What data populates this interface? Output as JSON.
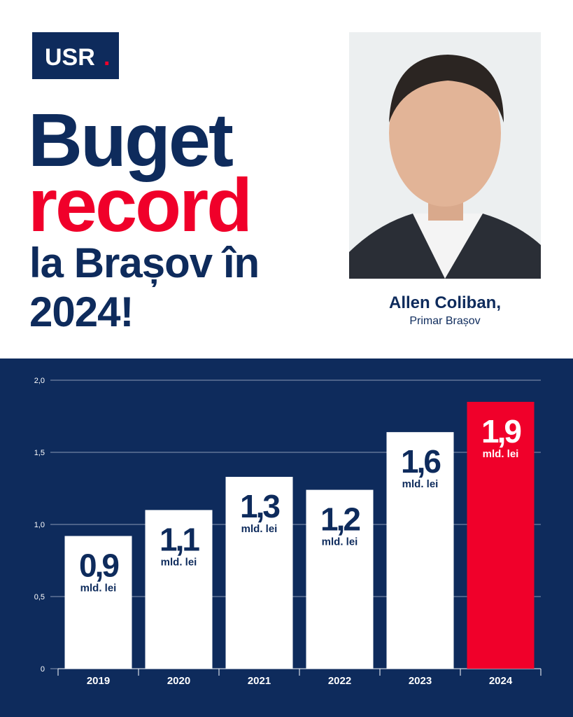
{
  "logo": {
    "text": "USR",
    "dot": "."
  },
  "headline": {
    "line1": "Buget",
    "line2": "record",
    "line3": "la Brașov în",
    "line4": "2024!"
  },
  "person": {
    "name": "Allen Coliban,",
    "role": "Primar Brașov"
  },
  "chart_data": {
    "type": "bar",
    "categories": [
      "2019",
      "2020",
      "2021",
      "2022",
      "2023",
      "2024"
    ],
    "values": [
      0.92,
      1.1,
      1.33,
      1.24,
      1.64,
      1.85
    ],
    "value_labels": [
      "0,9",
      "1,1",
      "1,3",
      "1,2",
      "1,6",
      "1,9"
    ],
    "value_unit": "mld. lei",
    "colors": [
      "#ffffff",
      "#ffffff",
      "#ffffff",
      "#ffffff",
      "#ffffff",
      "#f0002a"
    ],
    "ylim": [
      0,
      2.0
    ],
    "yticks": [
      0,
      {
        "value": 0.5,
        "label": "0,5"
      },
      {
        "value": 1.0,
        "label": "1,0"
      },
      {
        "value": 1.5,
        "label": "1,5"
      },
      {
        "value": 2.0,
        "label": "2,0"
      }
    ],
    "grid": true
  }
}
